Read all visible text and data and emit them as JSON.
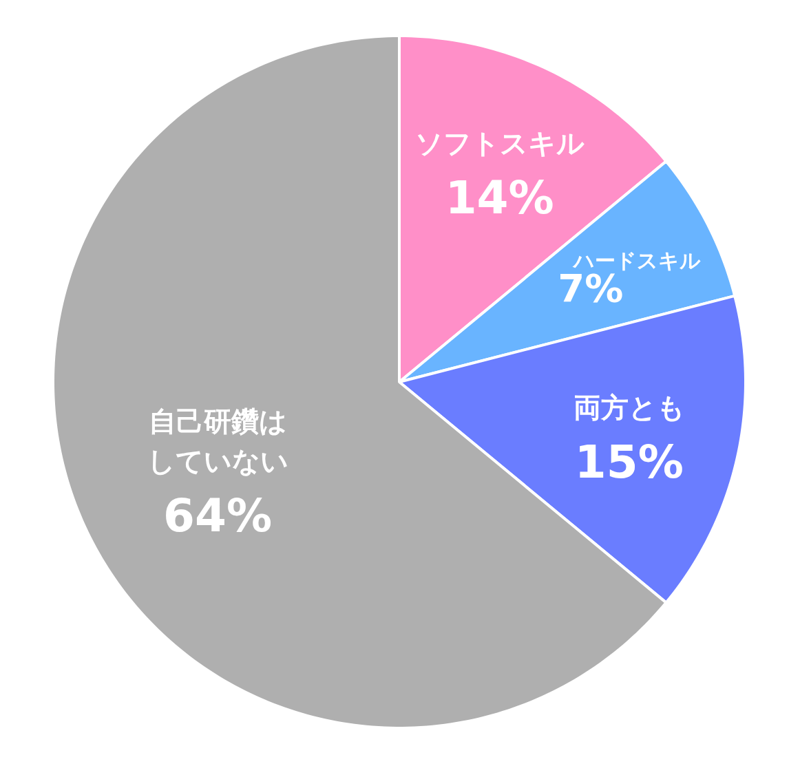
{
  "chart_data": {
    "type": "pie",
    "categories": [
      "ソフトスキル",
      "ハードスキル",
      "両方とも",
      "自己研鑽はしていない"
    ],
    "values": [
      14,
      7,
      15,
      64
    ],
    "colors": [
      "#ff8fc8",
      "#69b4ff",
      "#6a7dff",
      "#afafaf"
    ],
    "value_labels": [
      "14%",
      "7%",
      "15%",
      "64%"
    ]
  }
}
